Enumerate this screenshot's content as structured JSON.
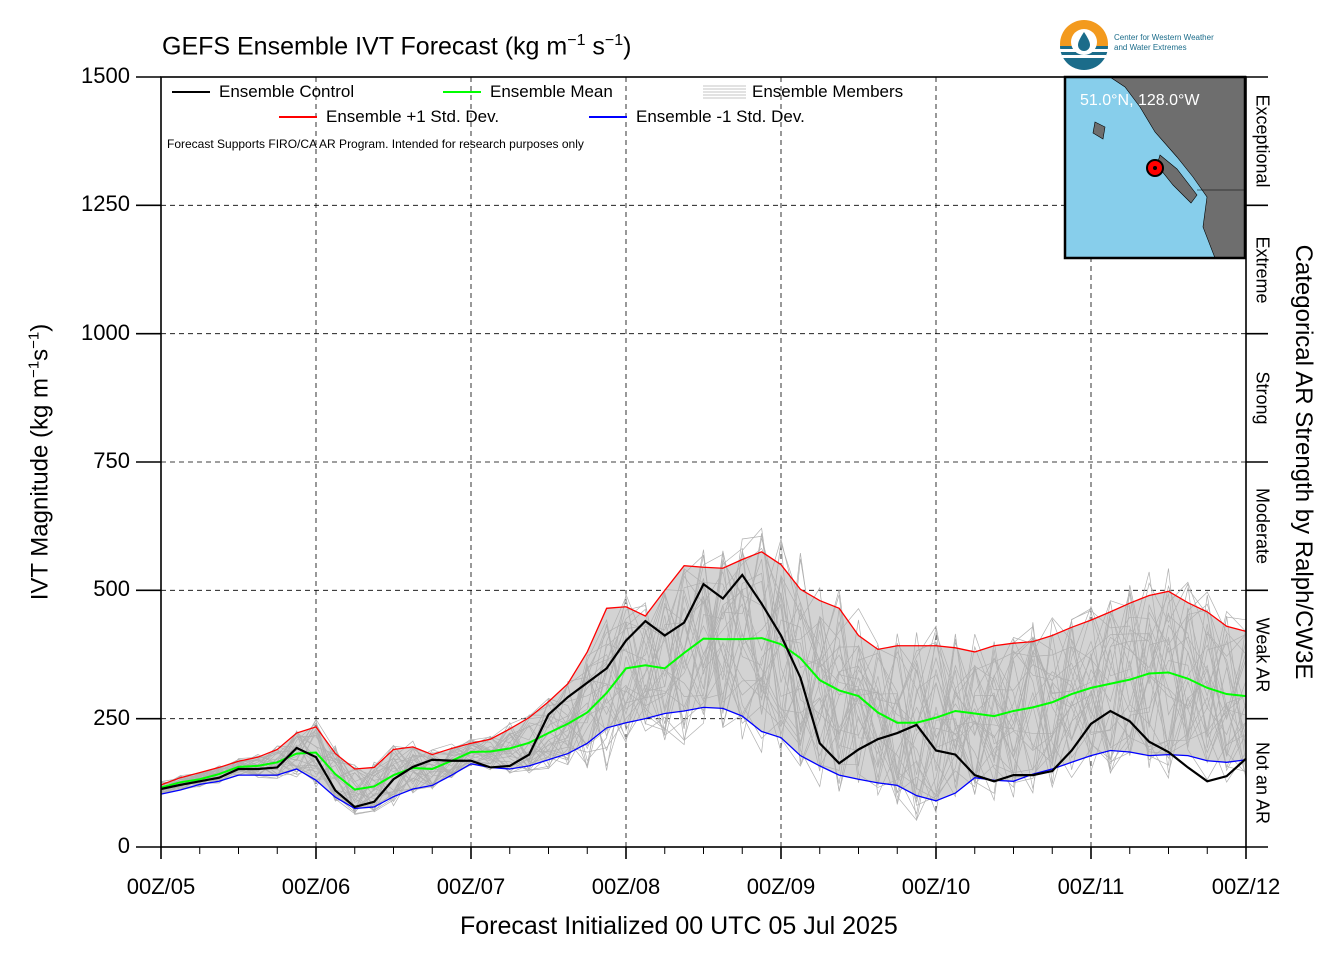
{
  "title": "GEFS Ensemble IVT Forecast (kg m$^{-1}$ s$^{-1}$)",
  "title_main": "GEFS Ensemble IVT Forecast (kg m",
  "title_sup1": "−1",
  "title_mid": " s",
  "title_sup2": "−1",
  "title_end": ")",
  "xlabel": "Forecast Initialized 00 UTC 05 Jul 2025",
  "ylabel_main": "IVT Magnitude (kg m",
  "ylabel_sup1": "−1",
  "ylabel_mid": "s",
  "ylabel_sup2": "−1",
  "ylabel_end": ")",
  "y2label": "Categorical AR Strength by Ralph/CW3E",
  "note": "Forecast Supports FIRO/CA AR Program. Intended for research purposes only",
  "map_label": "51.0°N, 128.0°W",
  "logo": {
    "line1": "Center for Western Weather",
    "line2": "and Water Extremes"
  },
  "colors": {
    "control": "#000000",
    "mean": "#00ff00",
    "plus_sd": "#ff0000",
    "minus_sd": "#0000ff",
    "members": "#b0b0b0",
    "spread_fill": "#d3d3d3",
    "ocean": "#87ceeb",
    "land": "#6e6e6e",
    "point": "#ff0000"
  },
  "chart_data": {
    "type": "line",
    "title": "GEFS Ensemble IVT Forecast (kg m-1 s-1)",
    "xlabel": "Forecast Initialized 00 UTC 05 Jul 2025",
    "ylabel": "IVT Magnitude (kg m-1s-1)",
    "y2label": "Categorical AR Strength by Ralph/CW3E",
    "ylim": [
      0,
      1500
    ],
    "xlim": [
      0,
      168
    ],
    "x_unit": "forecast hour",
    "grid": true,
    "legend_position": "top-left",
    "x_tick_values": [
      0,
      24,
      48,
      72,
      96,
      120,
      144,
      168
    ],
    "x_tick_labels": [
      "00Z/05",
      "00Z/06",
      "00Z/07",
      "00Z/08",
      "00Z/09",
      "00Z/10",
      "00Z/11",
      "00Z/12"
    ],
    "y_ticks": [
      0,
      250,
      500,
      750,
      1000,
      1250,
      1500
    ],
    "categories": [
      {
        "label": "Not an AR",
        "from": 0,
        "to": 250
      },
      {
        "label": "Weak AR",
        "from": 250,
        "to": 500
      },
      {
        "label": "Moderate",
        "from": 500,
        "to": 750
      },
      {
        "label": "Strong",
        "from": 750,
        "to": 1000
      },
      {
        "label": "Extreme",
        "from": 1000,
        "to": 1250
      },
      {
        "label": "Exceptional",
        "from": 1250,
        "to": 1500
      }
    ],
    "x": [
      0,
      3,
      6,
      9,
      12,
      15,
      18,
      21,
      24,
      27,
      30,
      33,
      36,
      39,
      42,
      45,
      48,
      51,
      54,
      57,
      60,
      63,
      66,
      69,
      72,
      75,
      78,
      81,
      84,
      87,
      90,
      93,
      96,
      99,
      102,
      105,
      108,
      111,
      114,
      117,
      120,
      123,
      126,
      129,
      132,
      135,
      138,
      141,
      144,
      147,
      150,
      153,
      156,
      159,
      162,
      165,
      168
    ],
    "series": [
      {
        "name": "Ensemble Control",
        "color": "#000000",
        "values": [
          113,
          121,
          128,
          135,
          152,
          152,
          155,
          193,
          175,
          110,
          78,
          88,
          132,
          156,
          170,
          168,
          168,
          155,
          158,
          180,
          258,
          292,
          320,
          348,
          402,
          440,
          412,
          437,
          512,
          484,
          530,
          474,
          412,
          330,
          202,
          163,
          190,
          210,
          222,
          238,
          188,
          180,
          140,
          128,
          140,
          140,
          148,
          188,
          240,
          265,
          245,
          205,
          185,
          155,
          128,
          138,
          172
        ]
      },
      {
        "name": "Ensemble Mean",
        "color": "#00ff00",
        "values": [
          116,
          126,
          132,
          142,
          156,
          158,
          165,
          182,
          184,
          142,
          112,
          118,
          140,
          154,
          152,
          168,
          185,
          186,
          192,
          203,
          222,
          240,
          262,
          300,
          348,
          354,
          348,
          378,
          406,
          405,
          405,
          407,
          395,
          368,
          325,
          305,
          294,
          262,
          242,
          242,
          252,
          265,
          260,
          255,
          265,
          272,
          282,
          298,
          310,
          318,
          326,
          338,
          340,
          328,
          310,
          298,
          294
        ]
      },
      {
        "name": "Ensemble +1 Std. Dev.",
        "color": "#ff0000",
        "values": [
          121,
          135,
          145,
          155,
          167,
          175,
          190,
          222,
          234,
          182,
          152,
          155,
          190,
          195,
          180,
          192,
          202,
          210,
          230,
          252,
          283,
          318,
          380,
          465,
          468,
          450,
          500,
          548,
          545,
          543,
          560,
          575,
          550,
          502,
          480,
          465,
          412,
          385,
          392,
          392,
          392,
          388,
          380,
          392,
          397,
          400,
          412,
          428,
          442,
          458,
          475,
          490,
          498,
          476,
          458,
          430,
          420
        ]
      },
      {
        "name": "Ensemble -1 Std. Dev.",
        "color": "#0000ff",
        "values": [
          103,
          111,
          122,
          128,
          140,
          140,
          140,
          152,
          130,
          97,
          75,
          78,
          98,
          113,
          120,
          140,
          162,
          155,
          152,
          158,
          170,
          182,
          202,
          232,
          242,
          250,
          260,
          265,
          272,
          270,
          255,
          225,
          213,
          178,
          158,
          140,
          132,
          125,
          120,
          100,
          90,
          105,
          135,
          130,
          128,
          142,
          152,
          165,
          178,
          188,
          185,
          178,
          180,
          178,
          168,
          165,
          170
        ]
      }
    ]
  },
  "legend": {
    "control": "Ensemble Control",
    "mean": "Ensemble Mean",
    "members": "Ensemble Members",
    "plus_sd": "Ensemble +1 Std. Dev.",
    "minus_sd": "Ensemble -1 Std. Dev."
  }
}
